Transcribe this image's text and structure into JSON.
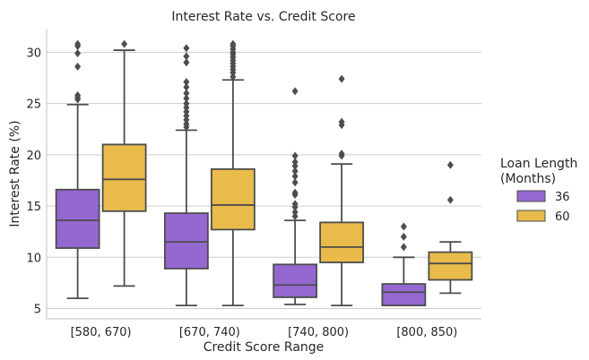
{
  "chart_data": {
    "type": "box",
    "title": "Interest Rate vs. Credit Score",
    "xlabel": "Credit Score Range",
    "ylabel": "Interest Rate (%)",
    "ylim": [
      4,
      32.3
    ],
    "yticks": [
      5,
      10,
      15,
      20,
      25,
      30
    ],
    "grid": "horizontal",
    "legend": {
      "title_lines": [
        "Loan Length",
        "(Months)"
      ],
      "placement": "right"
    },
    "categories": [
      "[580, 670)",
      "[670, 740)",
      "[740, 800)",
      "[800, 850)"
    ],
    "series": [
      {
        "name": "36",
        "color": "#9467d1",
        "boxes": [
          {
            "whisker_low": 6.0,
            "q1": 10.9,
            "median": 13.6,
            "q3": 16.6,
            "whisker_high": 24.9,
            "outliers": [
              25.4,
              25.6,
              25.8,
              28.6,
              29.9,
              30.6,
              30.8
            ]
          },
          {
            "whisker_low": 5.3,
            "q1": 8.9,
            "median": 11.5,
            "q3": 14.3,
            "whisker_high": 22.4,
            "outliers": [
              22.7,
              23.0,
              23.4,
              23.8,
              24.2,
              24.6,
              25.0,
              25.5,
              26.0,
              26.6,
              27.1,
              29.0,
              29.6,
              30.4
            ]
          },
          {
            "whisker_low": 5.4,
            "q1": 6.1,
            "median": 7.3,
            "q3": 9.3,
            "whisker_high": 13.6,
            "outliers": [
              14.0,
              14.4,
              14.9,
              15.2,
              16.1,
              16.3,
              17.3,
              17.9,
              18.4,
              18.9,
              19.3,
              19.9,
              26.2
            ]
          },
          {
            "whisker_low": 5.3,
            "q1": 5.3,
            "median": 6.6,
            "q3": 7.4,
            "whisker_high": 10.0,
            "outliers": [
              11.0,
              12.0,
              13.0
            ]
          }
        ]
      },
      {
        "name": "60",
        "color": "#e8bb4b",
        "boxes": [
          {
            "whisker_low": 7.2,
            "q1": 14.5,
            "median": 17.6,
            "q3": 21.0,
            "whisker_high": 30.2,
            "outliers": [
              30.8
            ]
          },
          {
            "whisker_low": 5.3,
            "q1": 12.7,
            "median": 15.1,
            "q3": 18.6,
            "whisker_high": 27.3,
            "outliers": [
              27.6,
              28.0,
              28.3,
              28.6,
              28.9,
              29.2,
              29.5,
              29.8,
              30.0,
              30.3,
              30.6,
              30.8
            ]
          },
          {
            "whisker_low": 5.3,
            "q1": 9.5,
            "median": 11.0,
            "q3": 13.4,
            "whisker_high": 19.1,
            "outliers": [
              19.9,
              20.1,
              22.9,
              23.2,
              27.4
            ]
          },
          {
            "whisker_low": 6.5,
            "q1": 7.8,
            "median": 9.4,
            "q3": 10.5,
            "whisker_high": 11.5,
            "outliers": [
              15.6,
              19.0
            ]
          }
        ]
      }
    ]
  }
}
